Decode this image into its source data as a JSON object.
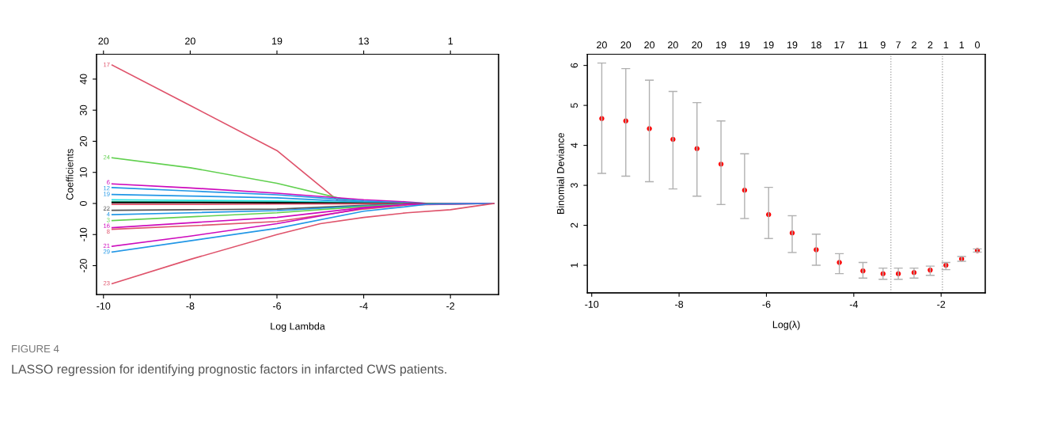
{
  "chart_data": [
    {
      "type": "line",
      "xlabel": "Log Lambda",
      "ylabel": "Coefficients",
      "xlim": [
        -10.16,
        -0.89
      ],
      "xticks": [
        -10,
        -8,
        -6,
        -4,
        -2
      ],
      "ylim": [
        -29.3,
        48
      ],
      "yticks": [
        -20,
        -10,
        0,
        10,
        20,
        30,
        40
      ],
      "grid": false,
      "legend": false,
      "annotations": [
        "20",
        "20",
        "19",
        "13",
        "1",
        "FIGURE 4",
        "LASSO regression for identifying prognostic factors in infarcted CWS patients."
      ],
      "series": [
        {
          "name": "17",
          "color": "#df536b",
          "x": [
            -9.8,
            -8,
            -6,
            -4.6,
            -4,
            -3,
            -1
          ],
          "values": [
            44.5,
            31.5,
            17,
            1,
            0.3,
            0,
            0
          ]
        },
        {
          "name": "24",
          "color": "#61d04f",
          "x": [
            -9.8,
            -8,
            -6,
            -4.5,
            -4,
            -3,
            -1
          ],
          "values": [
            14.7,
            11.5,
            6.5,
            1.5,
            0.5,
            0,
            0
          ]
        },
        {
          "name": "6",
          "color": "#cd0bbc",
          "x": [
            -9.8,
            -8,
            -6,
            -4,
            -3,
            -2.5,
            -1
          ],
          "values": [
            6.3,
            5,
            3.3,
            1.2,
            0.5,
            0,
            0
          ]
        },
        {
          "name": "12",
          "color": "#2297e6",
          "x": [
            -9.8,
            -8,
            -6,
            -4,
            -3,
            -2.5,
            -1
          ],
          "values": [
            5.1,
            4,
            2.8,
            0.8,
            0.2,
            0,
            0
          ]
        },
        {
          "name": "19",
          "color": "#2297e6",
          "x": [
            -9.8,
            -8,
            -6,
            -4,
            -3,
            -1
          ],
          "values": [
            2.9,
            2.4,
            1.8,
            0.4,
            0,
            0
          ]
        },
        {
          "color": "#28e2e5",
          "x": [
            -9.8,
            -8,
            -6,
            -4,
            -3,
            -1
          ],
          "values": [
            1.2,
            1,
            0.8,
            0.3,
            0,
            0
          ]
        },
        {
          "color": "#1b9e77",
          "x": [
            -9.8,
            -8,
            -6,
            -4,
            -3,
            -1
          ],
          "values": [
            0.6,
            0.5,
            0.4,
            0.1,
            0,
            0
          ]
        },
        {
          "color": "#000000",
          "x": [
            -9.8,
            -8,
            -6,
            -4,
            -3,
            -1
          ],
          "values": [
            0.3,
            0.3,
            0.2,
            0.1,
            0,
            0
          ]
        },
        {
          "color": "#df536b",
          "x": [
            -9.8,
            -8,
            -6,
            -4,
            -3,
            -1
          ],
          "values": [
            -0.3,
            -0.3,
            -0.2,
            -0.1,
            0,
            0
          ]
        },
        {
          "name": "22",
          "color": "#555555",
          "x": [
            -9.8,
            -8,
            -6,
            -4,
            -3,
            -2.5,
            -1
          ],
          "values": [
            -2.2,
            -2,
            -1.8,
            -0.6,
            -0.1,
            0,
            0
          ]
        },
        {
          "name": "4",
          "color": "#2297e6",
          "x": [
            -9.8,
            -8,
            -6,
            -4,
            -3,
            -1
          ],
          "values": [
            -3.6,
            -3,
            -2.3,
            -0.8,
            -0.2,
            0
          ]
        },
        {
          "name": "3",
          "color": "#61d04f",
          "x": [
            -9.8,
            -8,
            -6,
            -4,
            -3,
            -1
          ],
          "values": [
            -5.5,
            -4.3,
            -3,
            -1,
            -0.2,
            0
          ]
        },
        {
          "name": "16",
          "color": "#cd0bbc",
          "x": [
            -9.8,
            -8,
            -6,
            -4,
            -3,
            -1
          ],
          "values": [
            -7.8,
            -6.2,
            -4.5,
            -1.3,
            -0.3,
            0
          ]
        },
        {
          "name": "8",
          "color": "#df536b",
          "x": [
            -9.8,
            -8,
            -6,
            -4,
            -3,
            -1
          ],
          "values": [
            -8.3,
            -7.2,
            -5.8,
            -1.8,
            -0.5,
            0
          ]
        },
        {
          "name": "21",
          "color": "#cd0bbc",
          "x": [
            -9.8,
            -8,
            -6,
            -4,
            -3,
            -1
          ],
          "values": [
            -13.8,
            -10.5,
            -6.5,
            -1.5,
            -0.3,
            0
          ]
        },
        {
          "name": "29",
          "color": "#2297e6",
          "x": [
            -9.8,
            -8,
            -6,
            -4,
            -3,
            -2.5,
            -1
          ],
          "values": [
            -15.6,
            -12,
            -8,
            -2.5,
            -1,
            -0.2,
            0
          ]
        },
        {
          "name": "23",
          "color": "#df536b",
          "x": [
            -9.8,
            -8,
            -6,
            -5,
            -4,
            -3,
            -2,
            -1.5,
            -1
          ],
          "values": [
            -25.8,
            -18,
            -10,
            -6.5,
            -4.5,
            -3,
            -2,
            -1,
            0
          ]
        }
      ]
    },
    {
      "type": "scatter",
      "xlabel": "Log(λ)",
      "ylabel": "Binomial Deviance",
      "xlim": [
        -10.1,
        -0.99
      ],
      "xticks": [
        -10,
        -8,
        -6,
        -4,
        -2
      ],
      "ylim": [
        0.31,
        6.28
      ],
      "yticks": [
        1,
        2,
        3,
        4,
        5,
        6
      ],
      "annotations": [
        "20",
        "20",
        "20",
        "20",
        "20",
        "19",
        "19",
        "19",
        "19",
        "18",
        "17",
        "11",
        "9",
        "7",
        "2",
        "2",
        "1",
        "1",
        "0"
      ],
      "grid": false,
      "legend": false,
      "marker": "circle",
      "ref_lines": [
        {
          "axis": "x",
          "value": -3.15,
          "color": "#999999",
          "line_style": "dotted"
        },
        {
          "axis": "x",
          "value": -1.97,
          "color": "#999999",
          "line_style": "dotted"
        }
      ],
      "series": [
        {
          "color": "#ff0000",
          "x": [
            -9.77,
            -9.22,
            -8.68,
            -8.14,
            -7.59,
            -7.04,
            -6.5,
            -5.95,
            -5.41,
            -4.86,
            -4.33,
            -3.79,
            -3.33,
            -2.98,
            -2.62,
            -2.25,
            -1.89,
            -1.53,
            -1.17
          ],
          "values": [
            4.67,
            4.61,
            4.42,
            4.15,
            3.92,
            3.53,
            2.88,
            2.27,
            1.81,
            1.39,
            1.07,
            0.86,
            0.79,
            0.79,
            0.82,
            0.88,
            1.0,
            1.16,
            1.37
          ],
          "errors": [
            [
              3.3,
              6.06
            ],
            [
              3.23,
              5.92
            ],
            [
              3.09,
              5.63
            ],
            [
              2.91,
              5.35
            ],
            [
              2.73,
              5.07
            ],
            [
              2.52,
              4.61
            ],
            [
              2.17,
              3.79
            ],
            [
              1.67,
              2.95
            ],
            [
              1.32,
              2.24
            ],
            [
              1.0,
              1.78
            ],
            [
              0.79,
              1.29
            ],
            [
              0.68,
              1.07
            ],
            [
              0.65,
              0.93
            ],
            [
              0.65,
              0.93
            ],
            [
              0.68,
              0.93
            ],
            [
              0.75,
              0.98
            ],
            [
              0.89,
              1.07
            ],
            [
              1.1,
              1.22
            ],
            [
              1.33,
              1.41
            ]
          ]
        }
      ]
    }
  ]
}
